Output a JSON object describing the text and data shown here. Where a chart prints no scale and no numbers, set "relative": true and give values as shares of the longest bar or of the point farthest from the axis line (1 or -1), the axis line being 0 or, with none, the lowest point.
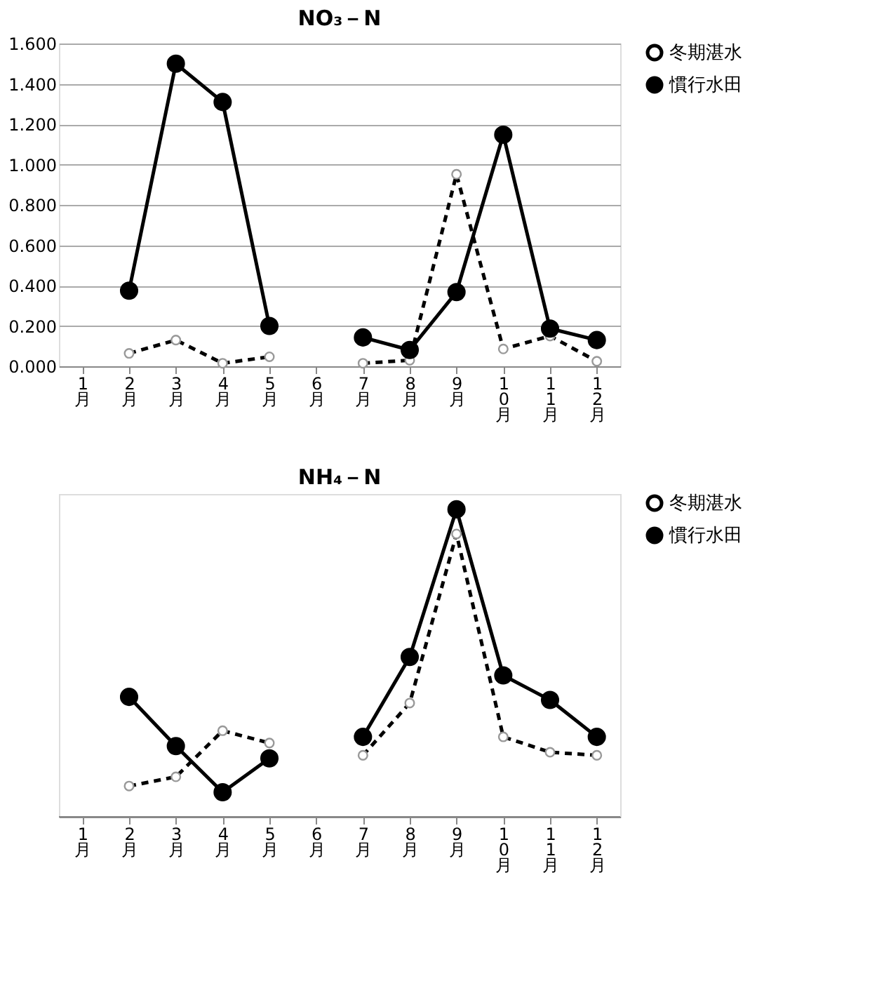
{
  "chart_data": [
    {
      "type": "line",
      "title": "NO₃－N",
      "categories": [
        "1月",
        "2月",
        "3月",
        "4月",
        "5月",
        "6月",
        "7月",
        "8月",
        "9月",
        "10月",
        "11月",
        "12月"
      ],
      "series": [
        {
          "name": "冬期湛水",
          "color": "#000000",
          "line_style": "dashed",
          "marker": "circle",
          "values": [
            null,
            0.064,
            0.13,
            0.015,
            0.047,
            null,
            0.015,
            0.03,
            0.952,
            0.086,
            0.15,
            0.025
          ]
        },
        {
          "name": "慣行水田",
          "color": "#000000",
          "line_style": "solid",
          "marker": "circle",
          "values": [
            null,
            0.375,
            1.5,
            1.31,
            0.2,
            null,
            0.143,
            0.081,
            0.368,
            1.148,
            0.187,
            0.13
          ]
        }
      ],
      "ylim": [
        0,
        1.6
      ],
      "yticks": [
        {
          "value": 0,
          "label": "0.000"
        },
        {
          "value": 0.2,
          "label": "0.200"
        },
        {
          "value": 0.4,
          "label": "0.400"
        },
        {
          "value": 0.6,
          "label": "0.600"
        },
        {
          "value": 0.8,
          "label": "0.800"
        },
        {
          "value": 1.0,
          "label": "1.000"
        },
        {
          "value": 1.2,
          "label": "1.200"
        },
        {
          "value": 1.4,
          "label": "1.400"
        },
        {
          "value": 1.6,
          "label": "1.600"
        }
      ],
      "grid": "y",
      "legend": "right"
    },
    {
      "type": "line",
      "title": "NH₄－N",
      "categories": [
        "1月",
        "2月",
        "3月",
        "4月",
        "5月",
        "6月",
        "7月",
        "8月",
        "9月",
        "10月",
        "11月",
        "12月"
      ],
      "relative": true,
      "series": [
        {
          "name": "冬期湛水",
          "color": "#000000",
          "line_style": "dashed",
          "marker": "circle",
          "values": [
            null,
            0.1,
            0.13,
            0.28,
            0.24,
            null,
            0.2,
            0.37,
            0.92,
            0.26,
            0.21,
            0.2
          ]
        },
        {
          "name": "慣行水田",
          "color": "#000000",
          "line_style": "solid",
          "marker": "circle",
          "values": [
            null,
            0.39,
            0.23,
            0.08,
            0.19,
            null,
            0.26,
            0.52,
            1,
            0.46,
            0.38,
            0.26
          ]
        }
      ],
      "legend": "right"
    }
  ]
}
